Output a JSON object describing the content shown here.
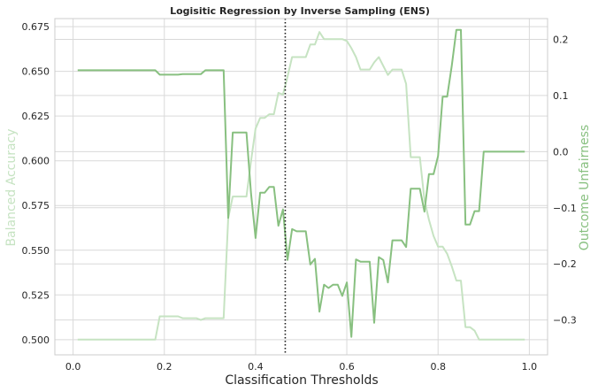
{
  "chart_data": {
    "type": "line",
    "title": "Logisitic Regression by Inverse Sampling (ENS)",
    "xlabel": "Classification Thresholds",
    "ylabel_left": "Balanced Accuracy",
    "ylabel_right": "Outcome Unfairness",
    "xlim": [
      -0.04,
      1.04
    ],
    "ylim_left": [
      0.4915,
      0.6795
    ],
    "ylim_right": [
      -0.362,
      0.237
    ],
    "xticks": [
      "0.0",
      "0.2",
      "0.4",
      "0.6",
      "0.8",
      "1.0"
    ],
    "yticks_left": [
      "0.500",
      "0.525",
      "0.550",
      "0.575",
      "0.600",
      "0.625",
      "0.650",
      "0.675"
    ],
    "yticks_right": [
      "−0.3",
      "−0.2",
      "−0.1",
      "0.0",
      "0.1",
      "0.2"
    ],
    "grid": true,
    "vline": {
      "x": 0.465,
      "style": "dotted"
    },
    "colors": {
      "balanced_accuracy": "#c6e3c2",
      "outcome_unfairness": "#88c080",
      "left_label": "#c6e3c2",
      "right_label": "#88c080",
      "vline": "#1a1a1a"
    },
    "series": [
      {
        "axis": "left",
        "points": [
          [
            0.01,
            0.5
          ],
          [
            0.02,
            0.5
          ],
          [
            0.03,
            0.5
          ],
          [
            0.04,
            0.5
          ],
          [
            0.05,
            0.5
          ],
          [
            0.06,
            0.5
          ],
          [
            0.07,
            0.5
          ],
          [
            0.08,
            0.5
          ],
          [
            0.09,
            0.5
          ],
          [
            0.1,
            0.5
          ],
          [
            0.11,
            0.5
          ],
          [
            0.12,
            0.5
          ],
          [
            0.13,
            0.5
          ],
          [
            0.14,
            0.5
          ],
          [
            0.15,
            0.5
          ],
          [
            0.16,
            0.5
          ],
          [
            0.17,
            0.5
          ],
          [
            0.18,
            0.5
          ],
          [
            0.19,
            0.513
          ],
          [
            0.2,
            0.513
          ],
          [
            0.21,
            0.513
          ],
          [
            0.22,
            0.513
          ],
          [
            0.23,
            0.513
          ],
          [
            0.24,
            0.512
          ],
          [
            0.25,
            0.512
          ],
          [
            0.26,
            0.512
          ],
          [
            0.27,
            0.512
          ],
          [
            0.28,
            0.511
          ],
          [
            0.29,
            0.512
          ],
          [
            0.3,
            0.512
          ],
          [
            0.31,
            0.512
          ],
          [
            0.32,
            0.512
          ],
          [
            0.33,
            0.512
          ],
          [
            0.34,
            0.568
          ],
          [
            0.35,
            0.58
          ],
          [
            0.36,
            0.58
          ],
          [
            0.37,
            0.58
          ],
          [
            0.38,
            0.58
          ],
          [
            0.39,
            0.6
          ],
          [
            0.4,
            0.618
          ],
          [
            0.41,
            0.624
          ],
          [
            0.42,
            0.624
          ],
          [
            0.43,
            0.626
          ],
          [
            0.44,
            0.626
          ],
          [
            0.45,
            0.638
          ],
          [
            0.46,
            0.637
          ],
          [
            0.47,
            0.647
          ],
          [
            0.48,
            0.658
          ],
          [
            0.49,
            0.658
          ],
          [
            0.5,
            0.658
          ],
          [
            0.51,
            0.658
          ],
          [
            0.52,
            0.665
          ],
          [
            0.53,
            0.665
          ],
          [
            0.54,
            0.672
          ],
          [
            0.55,
            0.668
          ],
          [
            0.56,
            0.668
          ],
          [
            0.57,
            0.668
          ],
          [
            0.58,
            0.668
          ],
          [
            0.59,
            0.668
          ],
          [
            0.6,
            0.667
          ],
          [
            0.61,
            0.663
          ],
          [
            0.62,
            0.658
          ],
          [
            0.63,
            0.651
          ],
          [
            0.64,
            0.651
          ],
          [
            0.65,
            0.651
          ],
          [
            0.66,
            0.655
          ],
          [
            0.67,
            0.658
          ],
          [
            0.68,
            0.653
          ],
          [
            0.69,
            0.648
          ],
          [
            0.7,
            0.651
          ],
          [
            0.71,
            0.651
          ],
          [
            0.72,
            0.651
          ],
          [
            0.73,
            0.643
          ],
          [
            0.74,
            0.602
          ],
          [
            0.75,
            0.602
          ],
          [
            0.76,
            0.602
          ],
          [
            0.77,
            0.578
          ],
          [
            0.78,
            0.567
          ],
          [
            0.79,
            0.558
          ],
          [
            0.8,
            0.552
          ],
          [
            0.81,
            0.552
          ],
          [
            0.82,
            0.548
          ],
          [
            0.83,
            0.541
          ],
          [
            0.84,
            0.533
          ],
          [
            0.85,
            0.533
          ],
          [
            0.86,
            0.507
          ],
          [
            0.87,
            0.507
          ],
          [
            0.88,
            0.505
          ],
          [
            0.89,
            0.5
          ],
          [
            0.9,
            0.5
          ],
          [
            0.91,
            0.5
          ],
          [
            0.92,
            0.5
          ],
          [
            0.93,
            0.5
          ],
          [
            0.94,
            0.5
          ],
          [
            0.95,
            0.5
          ],
          [
            0.96,
            0.5
          ],
          [
            0.97,
            0.5
          ],
          [
            0.98,
            0.5
          ],
          [
            0.99,
            0.5
          ]
        ]
      },
      {
        "axis": "right",
        "points": [
          [
            0.01,
            0.145
          ],
          [
            0.02,
            0.145
          ],
          [
            0.03,
            0.145
          ],
          [
            0.04,
            0.145
          ],
          [
            0.05,
            0.145
          ],
          [
            0.06,
            0.145
          ],
          [
            0.07,
            0.145
          ],
          [
            0.08,
            0.145
          ],
          [
            0.09,
            0.145
          ],
          [
            0.1,
            0.145
          ],
          [
            0.11,
            0.145
          ],
          [
            0.12,
            0.145
          ],
          [
            0.13,
            0.145
          ],
          [
            0.14,
            0.145
          ],
          [
            0.15,
            0.145
          ],
          [
            0.16,
            0.145
          ],
          [
            0.17,
            0.145
          ],
          [
            0.18,
            0.145
          ],
          [
            0.19,
            0.137
          ],
          [
            0.2,
            0.137
          ],
          [
            0.21,
            0.137
          ],
          [
            0.22,
            0.137
          ],
          [
            0.23,
            0.137
          ],
          [
            0.24,
            0.138
          ],
          [
            0.25,
            0.138
          ],
          [
            0.26,
            0.138
          ],
          [
            0.27,
            0.138
          ],
          [
            0.28,
            0.138
          ],
          [
            0.29,
            0.145
          ],
          [
            0.3,
            0.145
          ],
          [
            0.31,
            0.145
          ],
          [
            0.32,
            0.145
          ],
          [
            0.33,
            0.145
          ],
          [
            0.34,
            -0.118
          ],
          [
            0.35,
            0.034
          ],
          [
            0.36,
            0.034
          ],
          [
            0.37,
            0.034
          ],
          [
            0.38,
            0.034
          ],
          [
            0.39,
            -0.075
          ],
          [
            0.4,
            -0.154
          ],
          [
            0.41,
            -0.073
          ],
          [
            0.42,
            -0.073
          ],
          [
            0.43,
            -0.063
          ],
          [
            0.44,
            -0.063
          ],
          [
            0.45,
            -0.132
          ],
          [
            0.46,
            -0.103
          ],
          [
            0.47,
            -0.193
          ],
          [
            0.48,
            -0.138
          ],
          [
            0.49,
            -0.142
          ],
          [
            0.5,
            -0.142
          ],
          [
            0.51,
            -0.142
          ],
          [
            0.52,
            -0.201
          ],
          [
            0.53,
            -0.191
          ],
          [
            0.54,
            -0.285
          ],
          [
            0.55,
            -0.237
          ],
          [
            0.56,
            -0.243
          ],
          [
            0.57,
            -0.237
          ],
          [
            0.58,
            -0.237
          ],
          [
            0.59,
            -0.257
          ],
          [
            0.6,
            -0.233
          ],
          [
            0.61,
            -0.33
          ],
          [
            0.62,
            -0.192
          ],
          [
            0.63,
            -0.196
          ],
          [
            0.64,
            -0.196
          ],
          [
            0.65,
            -0.196
          ],
          [
            0.66,
            -0.305
          ],
          [
            0.67,
            -0.188
          ],
          [
            0.68,
            -0.193
          ],
          [
            0.69,
            -0.233
          ],
          [
            0.7,
            -0.158
          ],
          [
            0.71,
            -0.158
          ],
          [
            0.72,
            -0.158
          ],
          [
            0.73,
            -0.17
          ],
          [
            0.74,
            -0.066
          ],
          [
            0.75,
            -0.066
          ],
          [
            0.76,
            -0.066
          ],
          [
            0.77,
            -0.107
          ],
          [
            0.78,
            -0.04
          ],
          [
            0.79,
            -0.04
          ],
          [
            0.8,
            -0.008
          ],
          [
            0.81,
            0.098
          ],
          [
            0.82,
            0.098
          ],
          [
            0.83,
            0.153
          ],
          [
            0.84,
            0.217
          ],
          [
            0.85,
            0.217
          ],
          [
            0.86,
            -0.13
          ],
          [
            0.87,
            -0.13
          ],
          [
            0.88,
            -0.106
          ],
          [
            0.89,
            -0.106
          ],
          [
            0.9,
            0.0
          ],
          [
            0.91,
            0.0
          ],
          [
            0.92,
            0.0
          ],
          [
            0.93,
            0.0
          ],
          [
            0.94,
            0.0
          ],
          [
            0.95,
            0.0
          ],
          [
            0.96,
            0.0
          ],
          [
            0.97,
            0.0
          ],
          [
            0.98,
            0.0
          ],
          [
            0.99,
            0.0
          ]
        ]
      }
    ]
  }
}
